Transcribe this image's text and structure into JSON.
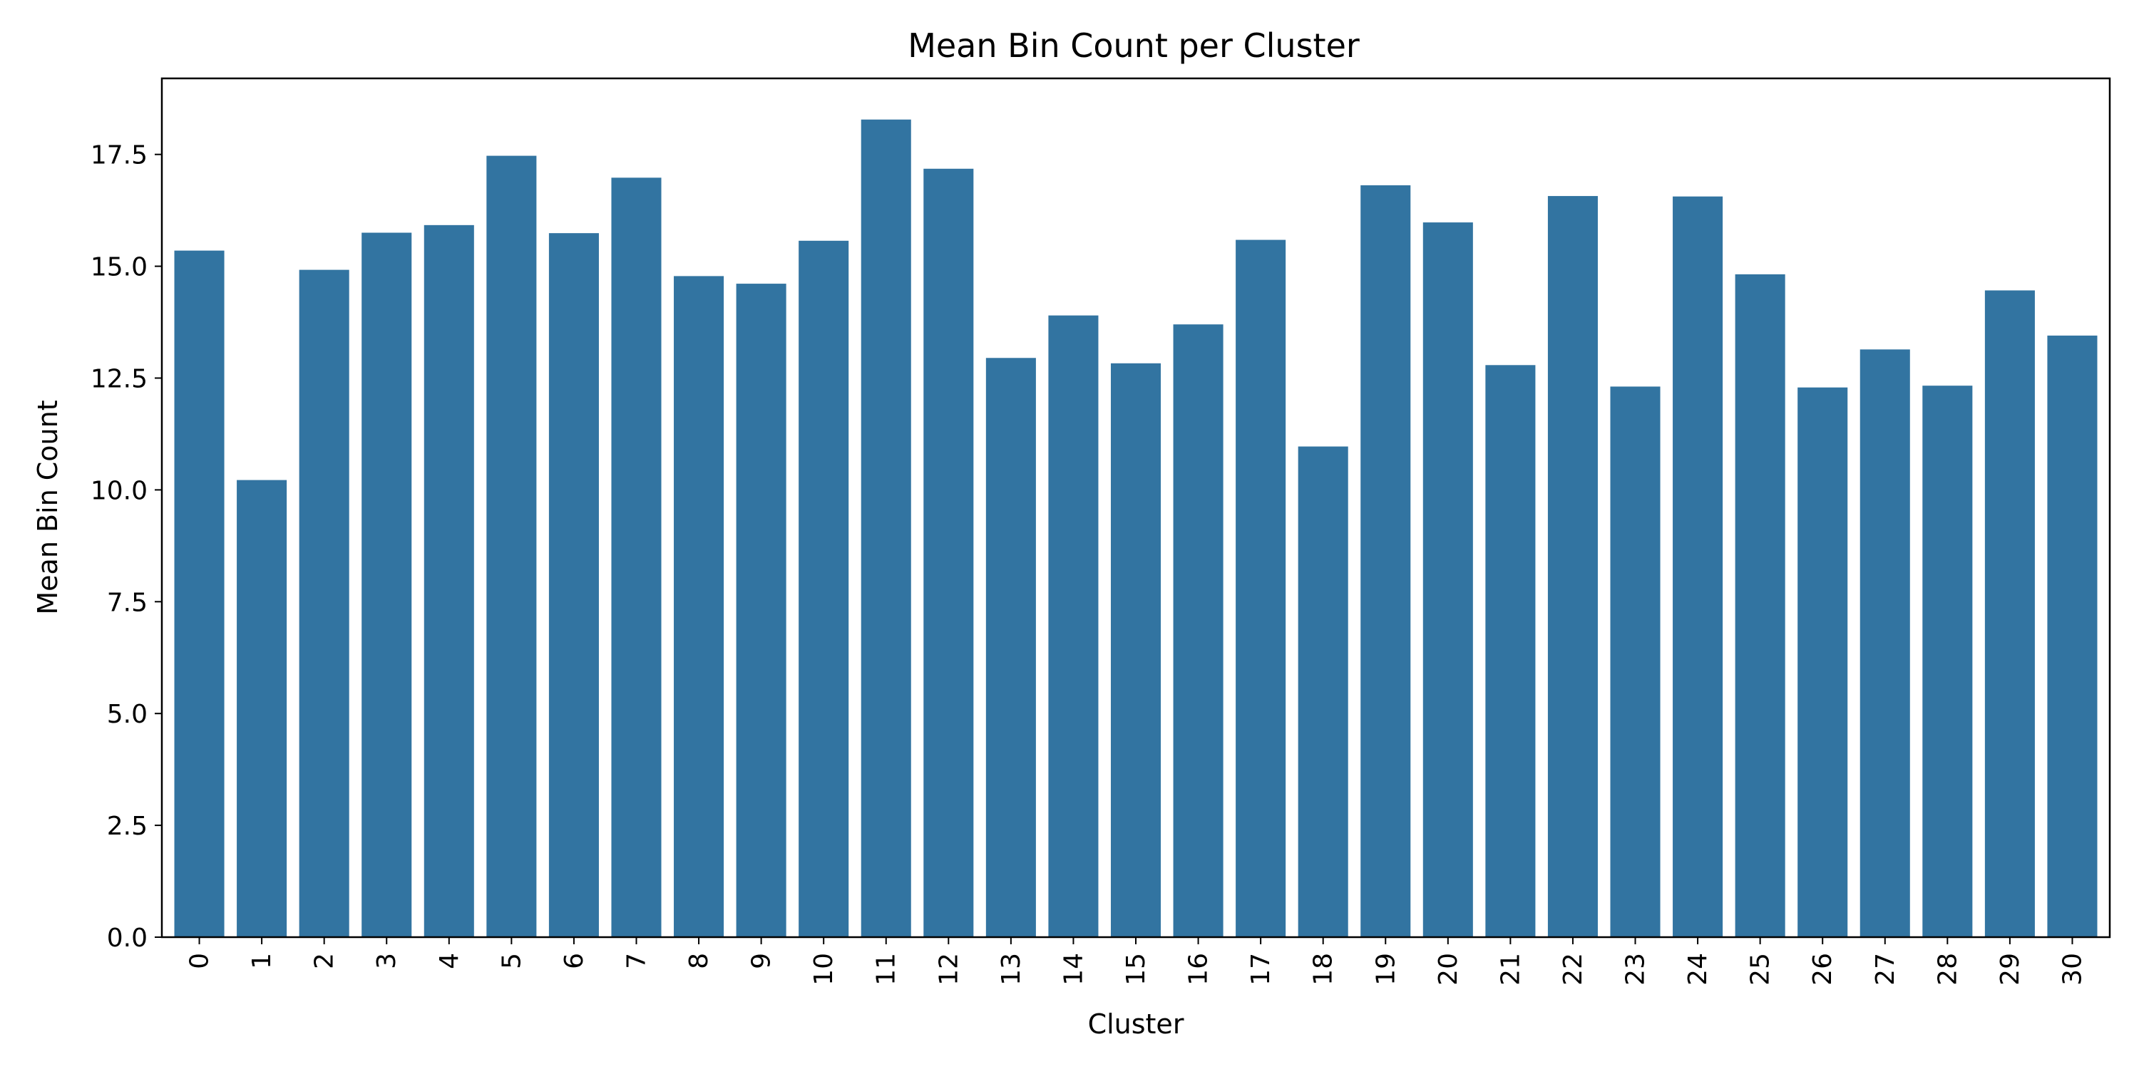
{
  "chart_data": {
    "type": "bar",
    "title": "Mean Bin Count per Cluster",
    "xlabel": "Cluster",
    "ylabel": "Mean Bin Count",
    "categories": [
      "0",
      "1",
      "2",
      "3",
      "4",
      "5",
      "6",
      "7",
      "8",
      "9",
      "10",
      "11",
      "12",
      "13",
      "14",
      "15",
      "16",
      "17",
      "18",
      "19",
      "20",
      "21",
      "22",
      "23",
      "24",
      "25",
      "26",
      "27",
      "28",
      "29",
      "30"
    ],
    "values": [
      15.35,
      10.22,
      14.92,
      15.75,
      15.92,
      17.47,
      15.74,
      16.98,
      14.78,
      14.61,
      15.57,
      18.28,
      17.18,
      12.95,
      13.9,
      12.83,
      13.7,
      15.59,
      10.97,
      16.81,
      15.98,
      12.79,
      16.57,
      12.31,
      16.56,
      14.82,
      12.29,
      13.14,
      12.33,
      14.46,
      13.45
    ],
    "yticks": [
      "0.0",
      "2.5",
      "5.0",
      "7.5",
      "10.0",
      "12.5",
      "15.0",
      "17.5"
    ],
    "ylim": [
      0,
      19.2
    ],
    "grid": false,
    "colors": {
      "bar": "#3274a1"
    }
  }
}
